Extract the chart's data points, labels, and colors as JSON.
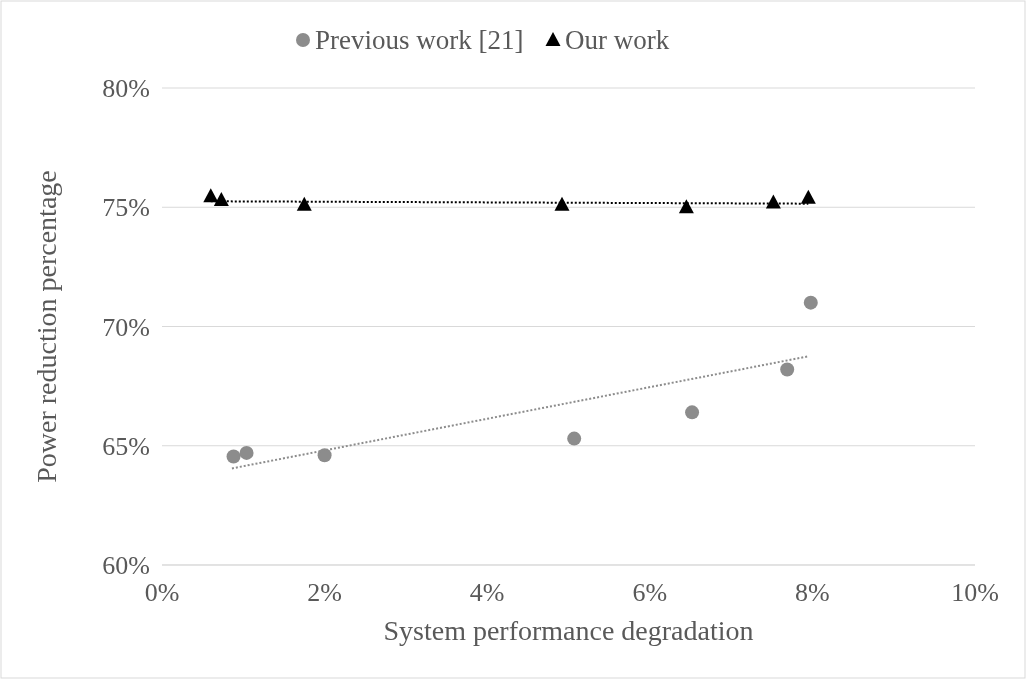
{
  "chart_data": {
    "type": "scatter",
    "xlabel": "System performance degradation",
    "ylabel": "Power reduction percentage",
    "xlim": [
      0,
      10
    ],
    "xticks": [
      {
        "value": 0,
        "label": "0%"
      },
      {
        "value": 2,
        "label": "2%"
      },
      {
        "value": 4,
        "label": "4%"
      },
      {
        "value": 6,
        "label": "6%"
      },
      {
        "value": 8,
        "label": "8%"
      },
      {
        "value": 10,
        "label": "10%"
      }
    ],
    "ylim": [
      60,
      80
    ],
    "yticks": [
      {
        "value": 60,
        "label": "60%"
      },
      {
        "value": 65,
        "label": "65%"
      },
      {
        "value": 70,
        "label": "70%"
      },
      {
        "value": 75,
        "label": "75%"
      },
      {
        "value": 80,
        "label": "80%"
      }
    ],
    "grid": "y",
    "legend": "top",
    "series": [
      {
        "name": "Previous work [21]",
        "color": "#8c8c8c",
        "marker": "circle",
        "x": [
          0.88,
          1.04,
          2.0,
          5.07,
          6.52,
          7.69,
          7.98
        ],
        "values": [
          64.55,
          64.7,
          64.6,
          65.3,
          66.4,
          68.2,
          71.0
        ]
      },
      {
        "name": "Our work",
        "color": "#000000",
        "marker": "triangle",
        "x": [
          0.6,
          0.73,
          1.75,
          4.92,
          6.45,
          7.52,
          7.95
        ],
        "values": [
          75.46,
          75.3,
          75.1,
          75.1,
          75.0,
          75.2,
          75.4
        ]
      },
      {
        "type": "line",
        "color": "#8c8c8c",
        "line_style": "dotted",
        "marker": "none",
        "x": [
          0.86,
          7.95
        ],
        "values": [
          64.05,
          68.75
        ]
      },
      {
        "type": "line",
        "color": "#000000",
        "line_style": "dotted",
        "marker": "none",
        "x": [
          0.6,
          7.95
        ],
        "values": [
          75.25,
          75.15
        ]
      }
    ]
  }
}
